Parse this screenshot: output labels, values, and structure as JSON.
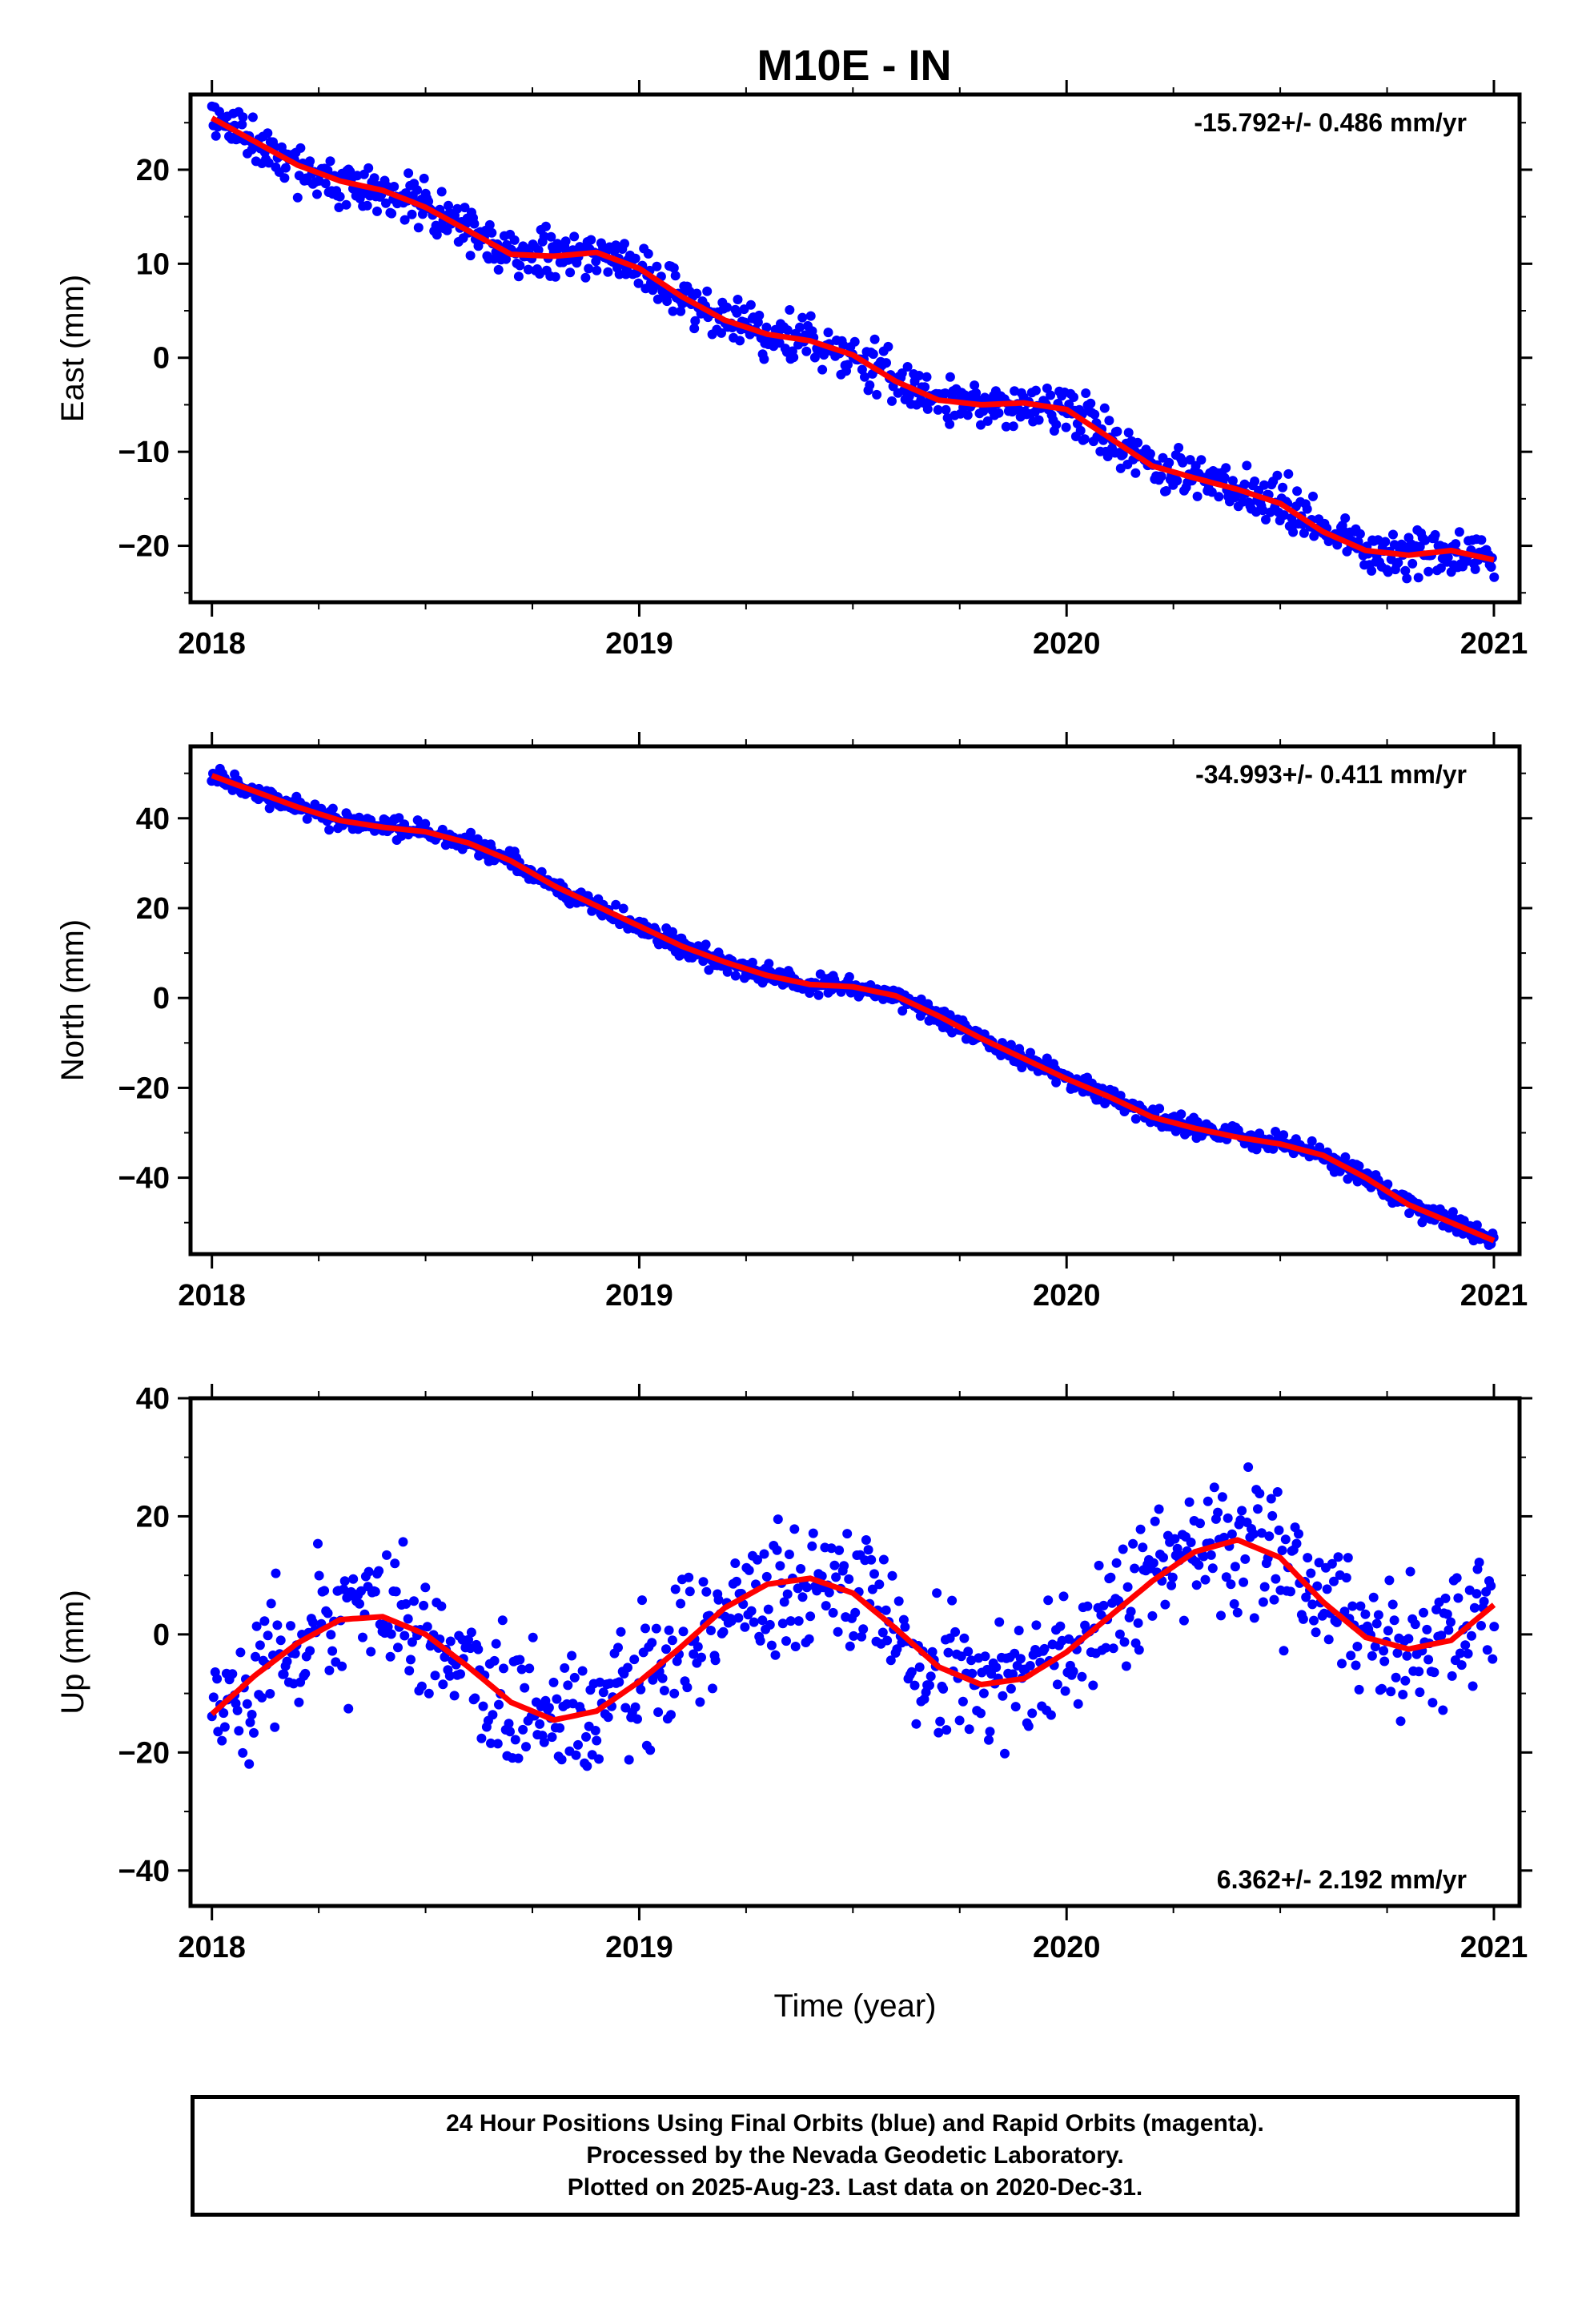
{
  "title": "M10E - IN",
  "colors": {
    "points": "#0000ff",
    "fit": "#ff0000",
    "frame": "#000000"
  },
  "footer": {
    "line1": "24 Hour Positions Using Final Orbits (blue) and Rapid Orbits (magenta).",
    "line2": "Processed by the Nevada Geodetic Laboratory.",
    "line3": "Plotted on 2025-Aug-23. Last data on 2020-Dec-31."
  },
  "chart_data": [
    {
      "type": "scatter",
      "id": "east",
      "ylabel": "East (mm)",
      "xlabel": "",
      "xlim": [
        2017.95,
        2021.06
      ],
      "ylim": [
        -26,
        28
      ],
      "xticks": [
        2018,
        2019,
        2020,
        2021
      ],
      "yticks": [
        -20,
        -10,
        0,
        10,
        20
      ],
      "rate_label": "-15.792+/- 0.486 mm/yr",
      "rate_position": "top-right",
      "fit_curve": {
        "x": [
          2018.0,
          2018.1,
          2018.2,
          2018.3,
          2018.4,
          2018.5,
          2018.6,
          2018.7,
          2018.8,
          2018.9,
          2019.0,
          2019.1,
          2019.2,
          2019.3,
          2019.4,
          2019.5,
          2019.6,
          2019.7,
          2019.8,
          2019.9,
          2020.0,
          2020.1,
          2020.2,
          2020.3,
          2020.4,
          2020.5,
          2020.6,
          2020.7,
          2020.8,
          2020.9,
          2021.0
        ],
        "y": [
          25.5,
          23.0,
          20.5,
          18.8,
          17.8,
          16.0,
          13.5,
          11.0,
          10.8,
          11.2,
          9.5,
          6.5,
          4.0,
          2.5,
          1.8,
          0.3,
          -2.5,
          -4.5,
          -5.0,
          -4.8,
          -5.5,
          -8.5,
          -11.5,
          -12.8,
          -14.0,
          -15.5,
          -18.5,
          -20.5,
          -21.0,
          -20.5,
          -21.5
        ]
      },
      "scatter_params": {
        "n": 900,
        "spread": 1.8,
        "seed": 11
      }
    },
    {
      "type": "scatter",
      "id": "north",
      "ylabel": "North (mm)",
      "xlabel": "",
      "xlim": [
        2017.95,
        2021.06
      ],
      "ylim": [
        -57,
        56
      ],
      "xticks": [
        2018,
        2019,
        2020,
        2021
      ],
      "yticks": [
        -40,
        -20,
        0,
        20,
        40
      ],
      "rate_label": "-34.993+/- 0.411 mm/yr",
      "rate_position": "top-right",
      "fit_curve": {
        "x": [
          2018.0,
          2018.1,
          2018.2,
          2018.3,
          2018.4,
          2018.5,
          2018.6,
          2018.7,
          2018.8,
          2018.9,
          2019.0,
          2019.1,
          2019.2,
          2019.3,
          2019.4,
          2019.5,
          2019.6,
          2019.7,
          2019.8,
          2019.9,
          2020.0,
          2020.1,
          2020.2,
          2020.3,
          2020.4,
          2020.5,
          2020.6,
          2020.7,
          2020.8,
          2020.9,
          2021.0
        ],
        "y": [
          49.5,
          46.0,
          42.5,
          39.5,
          38.0,
          37.0,
          34.5,
          30.5,
          25.0,
          20.5,
          16.0,
          11.5,
          8.0,
          5.0,
          3.0,
          2.5,
          0.5,
          -4.0,
          -9.0,
          -13.5,
          -18.0,
          -22.0,
          -26.5,
          -29.0,
          -31.0,
          -32.5,
          -35.0,
          -40.0,
          -46.0,
          -50.0,
          -54.0
        ]
      },
      "scatter_params": {
        "n": 1000,
        "spread": 1.5,
        "seed": 23
      }
    },
    {
      "type": "scatter",
      "id": "up",
      "ylabel": "Up (mm)",
      "xlabel": "Time (year)",
      "xlim": [
        2017.95,
        2021.06
      ],
      "ylim": [
        -46,
        40
      ],
      "xticks": [
        2018,
        2019,
        2020,
        2021
      ],
      "yticks": [
        -40,
        -20,
        0,
        20,
        40
      ],
      "rate_label": "6.362+/- 2.192 mm/yr",
      "rate_position": "bottom-right",
      "fit_curve": {
        "x": [
          2018.0,
          2018.1,
          2018.2,
          2018.3,
          2018.4,
          2018.5,
          2018.6,
          2018.7,
          2018.8,
          2018.9,
          2019.0,
          2019.1,
          2019.2,
          2019.3,
          2019.4,
          2019.5,
          2019.6,
          2019.7,
          2019.8,
          2019.9,
          2020.0,
          2020.1,
          2020.2,
          2020.3,
          2020.4,
          2020.5,
          2020.6,
          2020.7,
          2020.8,
          2020.9,
          2021.0
        ],
        "y": [
          -13.5,
          -7.0,
          -1.5,
          2.5,
          3.0,
          0.0,
          -5.5,
          -11.5,
          -14.5,
          -13.0,
          -8.0,
          -2.0,
          4.5,
          8.5,
          9.5,
          7.0,
          1.0,
          -5.5,
          -8.5,
          -7.5,
          -3.0,
          3.0,
          9.0,
          14.0,
          16.0,
          13.0,
          5.5,
          -0.5,
          -2.5,
          -1.0,
          5.0
        ]
      },
      "scatter_params": {
        "n": 800,
        "spread": 8.0,
        "seed": 37
      }
    }
  ]
}
